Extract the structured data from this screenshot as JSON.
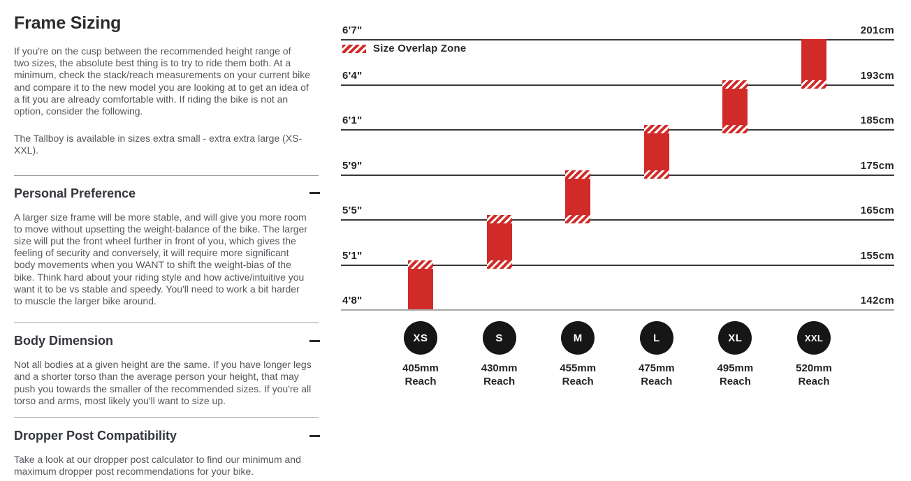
{
  "page": {
    "title": "Frame Sizing",
    "intro": "If you're on the cusp between the recommended height range of\ntwo sizes, the absolute best thing is to try to ride them both. At a\nminimum, check the stack/reach measurements on your current bike\nand compare it to the new model you are looking at to get an idea of\na fit you are already comfortable with. If riding the bike is not an\noption, consider the following.",
    "availability": "The Tallboy is available in sizes extra small - extra extra large (XS-\nXXL).",
    "sections": [
      {
        "heading": "Personal Preference",
        "body": "A larger size frame will be more stable, and will give you more room\nto move without upsetting the weight-balance of the bike. The larger\nsize will put the front wheel further in front of you, which gives the\nfeeling of security and conversely, it will require more significant\nbody movements when you WANT to shift the weight-bias of the\nbike. Think hard about your riding style and how active/intuitive you\nwant it to be vs stable and speedy. You'll need to work a bit harder\nto muscle the larger bike around.",
        "collapsed": false
      },
      {
        "heading": "Body Dimension",
        "body": "Not all bodies at a given height are the same. If you have longer legs\nand a shorter torso than the average person your height, that may\npush you towards the smaller of the recommended sizes. If you're all\ntorso and arms, most likely you'll want to size up.",
        "collapsed": false
      },
      {
        "heading": "Dropper Post Compatibility",
        "body": "Take a look at our dropper post calculator to find our minimum and\nmaximum dropper post recommendations for your bike.",
        "collapsed": false
      }
    ]
  },
  "chart_data": {
    "type": "bar",
    "subtype": "floating-range-columns",
    "title": "",
    "legend": {
      "label": "Size Overlap Zone",
      "position": "top-left"
    },
    "grid": "horizontal-lines",
    "axis_left_unit": "feet-inches",
    "axis_right_unit": "centimeters",
    "height_levels": [
      {
        "imperial": "6'7\"",
        "metric": "201cm",
        "cm": 201
      },
      {
        "imperial": "6'4\"",
        "metric": "193cm",
        "cm": 193
      },
      {
        "imperial": "6'1\"",
        "metric": "185cm",
        "cm": 185
      },
      {
        "imperial": "5'9\"",
        "metric": "175cm",
        "cm": 175
      },
      {
        "imperial": "5'5\"",
        "metric": "165cm",
        "cm": 165
      },
      {
        "imperial": "5'1\"",
        "metric": "155cm",
        "cm": 155
      },
      {
        "imperial": "4'8\"",
        "metric": "142cm",
        "cm": 142
      }
    ],
    "reach_word": "Reach",
    "sizes": [
      {
        "label": "XS",
        "reach": "405mm",
        "range_imperial": "4'8\"-5'1\"",
        "range_cm": [
          142,
          155
        ],
        "overlap_top": true,
        "overlap_bottom": false
      },
      {
        "label": "S",
        "reach": "430mm",
        "range_imperial": "5'1\"-5'5\"",
        "range_cm": [
          155,
          165
        ],
        "overlap_top": true,
        "overlap_bottom": true
      },
      {
        "label": "M",
        "reach": "455mm",
        "range_imperial": "5'5\"-5'9\"",
        "range_cm": [
          165,
          175
        ],
        "overlap_top": true,
        "overlap_bottom": true
      },
      {
        "label": "L",
        "reach": "475mm",
        "range_imperial": "5'9\"-6'1\"",
        "range_cm": [
          175,
          185
        ],
        "overlap_top": true,
        "overlap_bottom": true
      },
      {
        "label": "XL",
        "reach": "495mm",
        "range_imperial": "6'1\"-6'4\"",
        "range_cm": [
          185,
          193
        ],
        "overlap_top": true,
        "overlap_bottom": true
      },
      {
        "label": "XXL",
        "reach": "520mm",
        "range_imperial": "6'4\"-6'7\"",
        "range_cm": [
          193,
          201
        ],
        "overlap_top": false,
        "overlap_bottom": true
      }
    ],
    "colors": {
      "bar": "#d02b28",
      "line": "#3a3736",
      "baseline": "#a7a7a7",
      "circle": "#161616"
    }
  }
}
